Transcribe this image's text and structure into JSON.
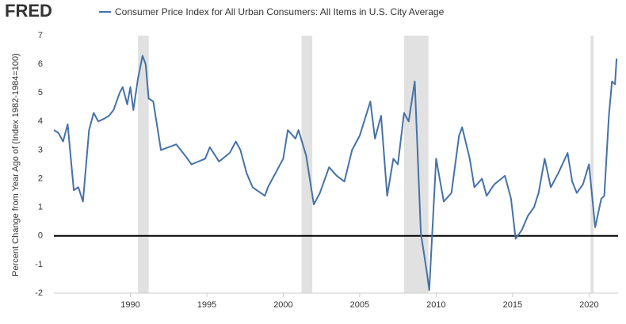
{
  "logo": "FRED",
  "chart_data": {
    "type": "line",
    "y_label": "Percent Change from Year Ago of (Index 1982-1984=100)",
    "x": [
      1985.0,
      1985.3,
      1985.6,
      1985.9,
      1986.3,
      1986.6,
      1986.9,
      1987.3,
      1987.6,
      1987.9,
      1988.3,
      1988.6,
      1988.9,
      1989.3,
      1989.5,
      1989.8,
      1990.0,
      1990.2,
      1990.5,
      1990.8,
      1991.0,
      1991.2,
      1991.5,
      1992.0,
      1992.5,
      1993.0,
      1993.6,
      1994.0,
      1994.9,
      1995.2,
      1995.8,
      1996.5,
      1996.9,
      1997.2,
      1997.6,
      1998.0,
      1998.8,
      1999.0,
      1999.6,
      2000.0,
      2000.3,
      2000.8,
      2001.0,
      2001.5,
      2002.0,
      2002.4,
      2003.0,
      2003.5,
      2004.0,
      2004.5,
      2005.0,
      2005.7,
      2006.0,
      2006.4,
      2006.8,
      2007.2,
      2007.5,
      2007.9,
      2008.2,
      2008.6,
      2009.0,
      2009.4,
      2009.55,
      2009.9,
      2010.0,
      2010.5,
      2011.0,
      2011.5,
      2011.7,
      2012.2,
      2012.5,
      2013.0,
      2013.3,
      2013.8,
      2014.5,
      2014.9,
      2015.2,
      2015.6,
      2016.0,
      2016.4,
      2016.7,
      2017.1,
      2017.5,
      2018.0,
      2018.6,
      2018.9,
      2019.2,
      2019.6,
      2020.0,
      2020.4,
      2020.8,
      2021.0,
      2021.3,
      2021.5,
      2021.7,
      2021.8
    ],
    "series": [
      {
        "name": "Consumer Price Index for All Urban Consumers: All Items in U.S. City Average",
        "color": "#4572a7",
        "values": [
          3.7,
          3.6,
          3.3,
          3.9,
          1.6,
          1.7,
          1.2,
          3.7,
          4.3,
          4.0,
          4.1,
          4.2,
          4.4,
          5.0,
          5.2,
          4.6,
          5.2,
          4.4,
          5.5,
          6.3,
          6.0,
          4.8,
          4.7,
          3.0,
          3.1,
          3.2,
          2.8,
          2.5,
          2.7,
          3.1,
          2.6,
          2.9,
          3.3,
          3.0,
          2.2,
          1.7,
          1.4,
          1.7,
          2.3,
          2.7,
          3.7,
          3.4,
          3.7,
          2.8,
          1.1,
          1.5,
          2.4,
          2.1,
          1.9,
          3.0,
          3.5,
          4.7,
          3.4,
          4.2,
          1.4,
          2.7,
          2.5,
          4.3,
          4.0,
          5.4,
          0.1,
          -1.3,
          -1.9,
          1.7,
          2.7,
          1.2,
          1.5,
          3.5,
          3.8,
          2.7,
          1.7,
          2.0,
          1.4,
          1.8,
          2.1,
          1.3,
          -0.1,
          0.2,
          0.7,
          1.0,
          1.5,
          2.7,
          1.7,
          2.2,
          2.9,
          1.9,
          1.5,
          1.8,
          2.5,
          0.3,
          1.3,
          1.4,
          4.2,
          5.4,
          5.3,
          6.2
        ]
      }
    ],
    "recessions": [
      [
        1990.5,
        1991.2
      ],
      [
        2001.2,
        2001.9
      ],
      [
        2007.9,
        2009.5
      ],
      [
        2020.1,
        2020.3
      ]
    ],
    "recession_color": "#e1e1e1",
    "xlim": [
      1985,
      2021.9
    ],
    "xticks": [
      1990,
      1995,
      2000,
      2005,
      2010,
      2015,
      2020
    ],
    "ylim": [
      -2,
      7
    ],
    "yticks": [
      -2,
      -1,
      0,
      1,
      2,
      3,
      4,
      5,
      6,
      7
    ],
    "zero_line": true,
    "grid": false
  }
}
